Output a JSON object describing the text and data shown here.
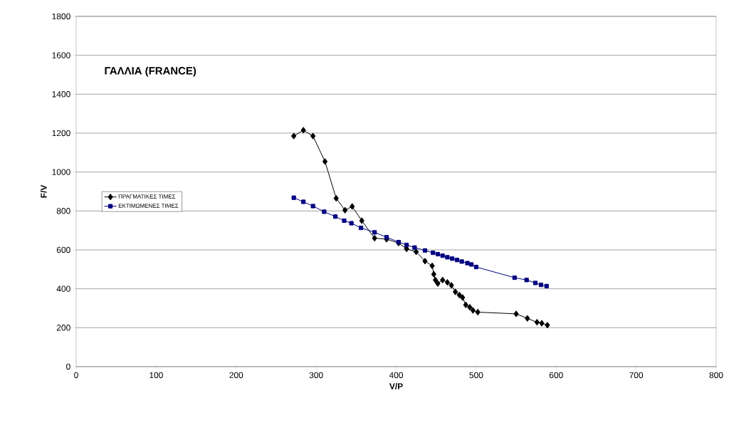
{
  "chart_data": {
    "type": "line",
    "title": "ΓΑΛΛΙΑ (FRANCE)",
    "xlabel": "V/P",
    "ylabel": "F/V",
    "xlim": [
      0,
      800
    ],
    "xticks": [
      0,
      100,
      200,
      300,
      400,
      500,
      600,
      700,
      800
    ],
    "ylim": [
      0,
      1800
    ],
    "yticks": [
      0,
      200,
      400,
      600,
      800,
      1000,
      1200,
      1400,
      1600,
      1800
    ],
    "grid": "y",
    "legend": "left",
    "series": [
      {
        "name": "ΠΡΑΓΜΑΤΙΚΕΣ ΤΙΜΕΣ",
        "color": "#000000",
        "marker": "diamond",
        "x": [
          272,
          284,
          296,
          311,
          325,
          336,
          345,
          357,
          373,
          388,
          403,
          413,
          425,
          436,
          445,
          447,
          449,
          452,
          458,
          464,
          469,
          474,
          479,
          483,
          487,
          492,
          496,
          502,
          550,
          564,
          576,
          582,
          589
        ],
        "values": [
          1185,
          1215,
          1185,
          1054,
          865,
          804,
          823,
          750,
          660,
          655,
          635,
          605,
          590,
          542,
          518,
          475,
          445,
          427,
          445,
          433,
          418,
          384,
          368,
          355,
          317,
          305,
          289,
          280,
          271,
          248,
          228,
          223,
          213
        ]
      },
      {
        "name": "ΕΚΤΙΜΩΜΕΝΕΣ ΤΙΜΕΣ",
        "color": "#000080",
        "marker": "square",
        "x": [
          272,
          284,
          296,
          310,
          324,
          335,
          344,
          356,
          373,
          388,
          403,
          413,
          423,
          436,
          446,
          452,
          458,
          464,
          470,
          476,
          482,
          489,
          494,
          500,
          548,
          563,
          574,
          581,
          588
        ],
        "values": [
          868,
          847,
          825,
          796,
          771,
          750,
          737,
          713,
          690,
          665,
          640,
          625,
          612,
          597,
          585,
          578,
          570,
          562,
          555,
          548,
          540,
          532,
          525,
          512,
          457,
          445,
          430,
          420,
          414
        ]
      }
    ]
  }
}
